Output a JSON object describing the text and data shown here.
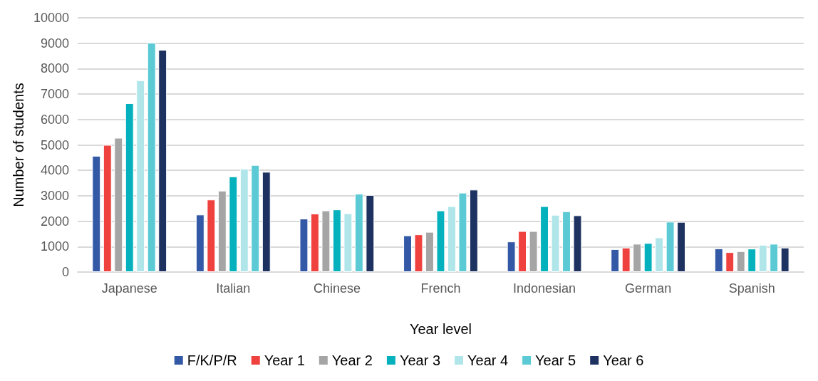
{
  "chart_data": {
    "type": "bar",
    "xlabel": "Year level",
    "ylabel": "Number of students",
    "categories": [
      "Japanese",
      "Italian",
      "Chinese",
      "French",
      "Indonesian",
      "German",
      "Spanish"
    ],
    "series": [
      {
        "name": "F/K/P/R",
        "color": "#3358a6",
        "values": [
          4570,
          2260,
          2100,
          1440,
          1200,
          900,
          930
        ]
      },
      {
        "name": "Year 1",
        "color": "#ef413d",
        "values": [
          5000,
          2850,
          2300,
          1480,
          1610,
          960,
          780
        ]
      },
      {
        "name": "Year 2",
        "color": "#a5a5a5",
        "values": [
          5280,
          3200,
          2420,
          1580,
          1610,
          1110,
          820
        ]
      },
      {
        "name": "Year 3",
        "color": "#05b1bc",
        "values": [
          6640,
          3760,
          2460,
          2420,
          2590,
          1140,
          920
        ]
      },
      {
        "name": "Year 4",
        "color": "#b0e5ea",
        "values": [
          7540,
          4060,
          2310,
          2590,
          2250,
          1360,
          1070
        ]
      },
      {
        "name": "Year 5",
        "color": "#5bcad4",
        "values": [
          9020,
          4210,
          3080,
          3120,
          2390,
          1980,
          1110
        ]
      },
      {
        "name": "Year 6",
        "color": "#1e3262",
        "values": [
          8740,
          3940,
          3030,
          3240,
          2230,
          1970,
          960
        ]
      }
    ],
    "ylim": [
      0,
      10000
    ],
    "yticks": [
      0,
      1000,
      2000,
      3000,
      4000,
      5000,
      6000,
      7000,
      8000,
      9000,
      10000
    ],
    "grid": "y",
    "legend": "bottom"
  }
}
